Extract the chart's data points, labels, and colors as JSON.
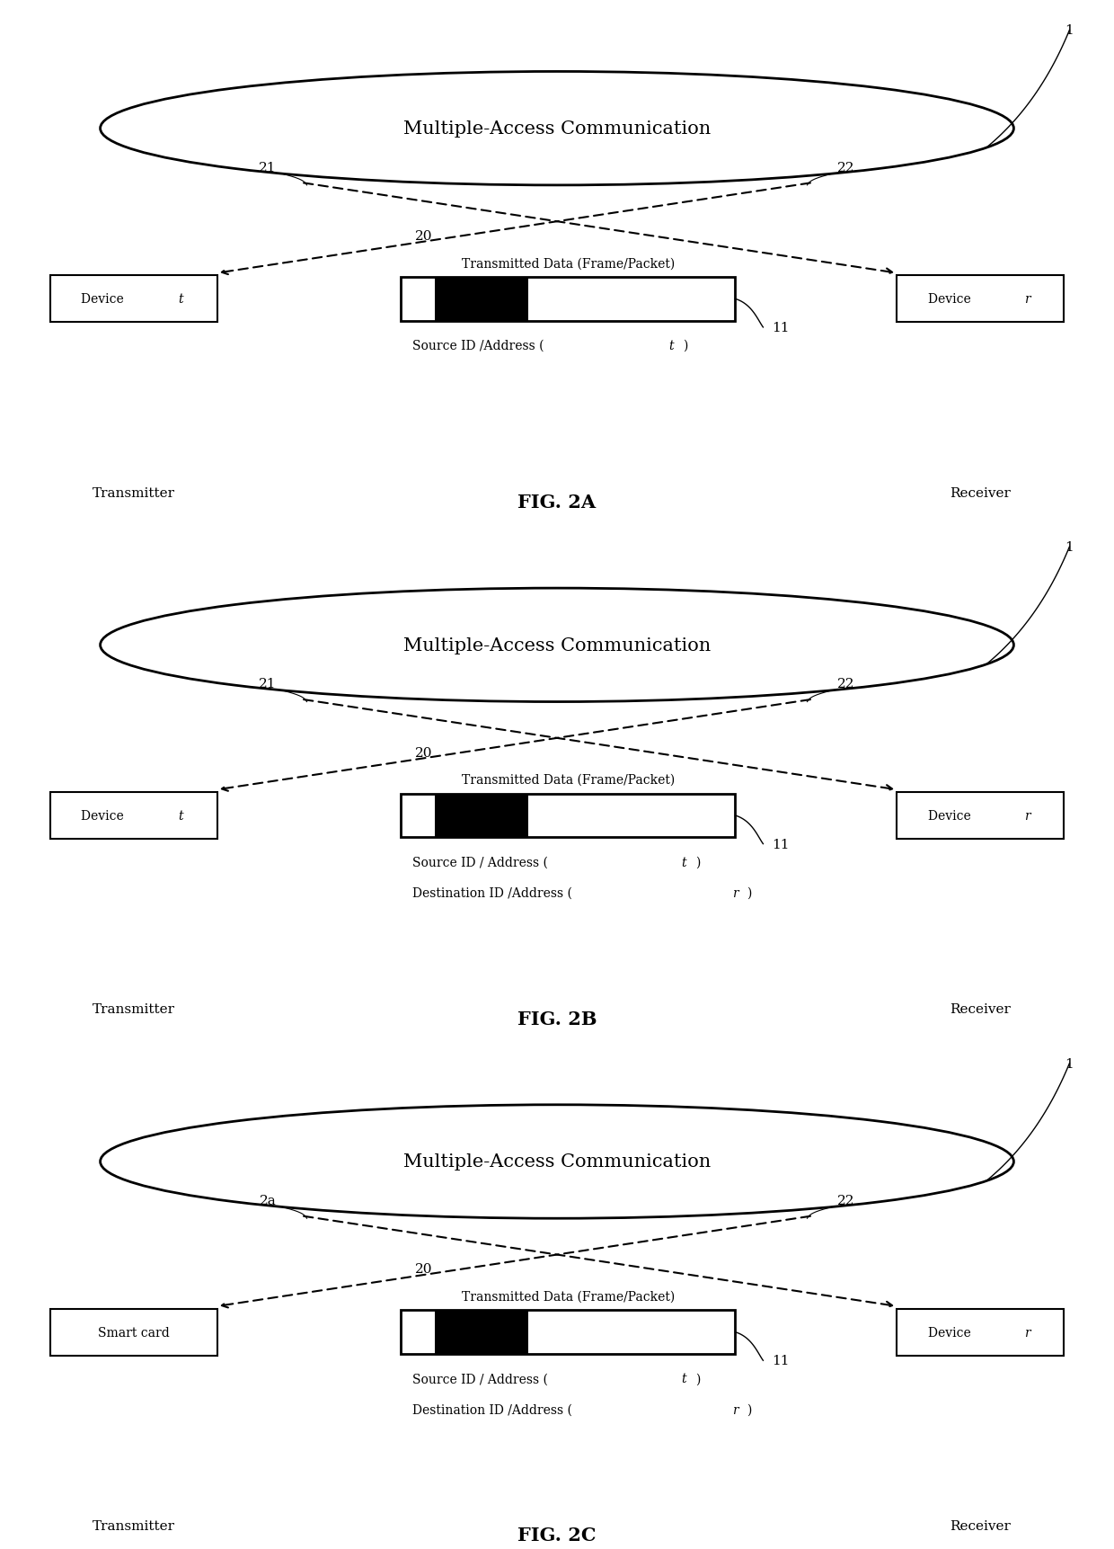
{
  "bg_color": "#ffffff",
  "fig_width": 12.4,
  "fig_height": 17.24,
  "panels": [
    {
      "id": "A",
      "label": "FIG. 2A",
      "ellipse_label": "Multiple-Access Communication",
      "left_box_label_normal": "Device ",
      "left_box_label_italic": "t",
      "right_box_label_normal": "Device ",
      "right_box_label_italic": "r",
      "left_sub": "Transmitter",
      "right_sub": "Receiver",
      "packet_label": "Transmitted Data (Frame/Packet)",
      "id_label1": "Source ID /Address (",
      "id_label1_italic": "t",
      "id_label1_end": ")",
      "id_label2": null,
      "left_node_label": "21",
      "right_node_label": "22",
      "packet_node_label": "20",
      "packet_id": "11"
    },
    {
      "id": "B",
      "label": "FIG. 2B",
      "ellipse_label": "Multiple-Access Communication",
      "left_box_label_normal": "Device ",
      "left_box_label_italic": "t",
      "right_box_label_normal": "Device ",
      "right_box_label_italic": "r",
      "left_sub": "Transmitter",
      "right_sub": "Receiver",
      "packet_label": "Transmitted Data (Frame/Packet)",
      "id_label1": "Source ID / Address (",
      "id_label1_italic": "t",
      "id_label1_end": ")",
      "id_label2": "Destination ID /Address (",
      "id_label2_italic": "r",
      "id_label2_end": ")",
      "left_node_label": "21",
      "right_node_label": "22",
      "packet_node_label": "20",
      "packet_id": "11"
    },
    {
      "id": "C",
      "label": "FIG. 2C",
      "ellipse_label": "Multiple-Access Communication",
      "left_box_label_normal": "Smart card",
      "left_box_label_italic": "",
      "right_box_label_normal": "Device ",
      "right_box_label_italic": "r",
      "left_sub": "Transmitter",
      "right_sub": "Receiver",
      "packet_label": "Transmitted Data (Frame/Packet)",
      "id_label1": "Source ID / Address (",
      "id_label1_italic": "t",
      "id_label1_end": ")",
      "id_label2": "Destination ID /Address (",
      "id_label2_italic": "r",
      "id_label2_end": ")",
      "left_node_label": "2a",
      "right_node_label": "22",
      "packet_node_label": "20",
      "packet_id": "11"
    }
  ]
}
